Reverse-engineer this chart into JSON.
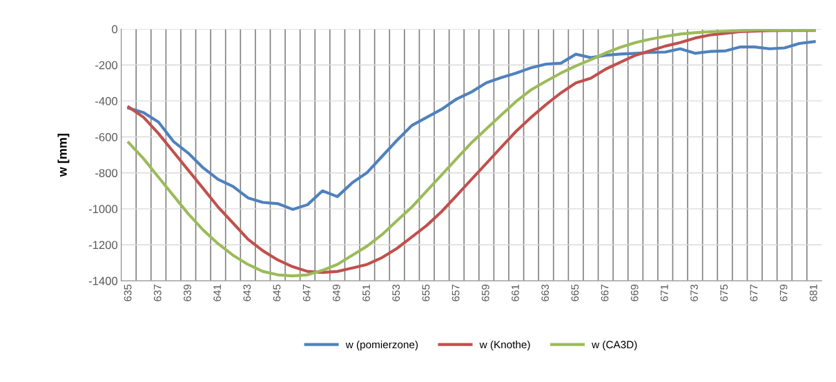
{
  "chart_data": {
    "type": "line",
    "ylabel": "w [mm]",
    "categories": [
      "635",
      null,
      "637",
      null,
      "639",
      null,
      "641",
      null,
      "643",
      null,
      "645",
      null,
      "647",
      null,
      "649",
      null,
      "651",
      null,
      "653",
      null,
      "655",
      null,
      "657",
      null,
      "659",
      null,
      "661",
      null,
      "663",
      null,
      "665",
      null,
      "667",
      null,
      "669",
      null,
      "671",
      null,
      "673",
      null,
      "675",
      null,
      "677",
      null,
      "679",
      null,
      "681"
    ],
    "series": [
      {
        "name": "w (pomierzone)",
        "color": "#4f81bd",
        "values": [
          -440,
          -465,
          -517,
          -625,
          -690,
          -772,
          -836,
          -875,
          -939,
          -964,
          -971,
          -1003,
          -977,
          -900,
          -932,
          -855,
          -798,
          -708,
          -619,
          -536,
          -491,
          -446,
          -389,
          -350,
          -299,
          -270,
          -245,
          -215,
          -195,
          -190,
          -140,
          -159,
          -146,
          -139,
          -135,
          -130,
          -128,
          -110,
          -135,
          -125,
          -122,
          -100,
          -100,
          -110,
          -105,
          -80,
          -70
        ]
      },
      {
        "name": "w (Knothe)",
        "color": "#c0504d",
        "values": [
          -434,
          -491,
          -581,
          -683,
          -785,
          -887,
          -990,
          -1079,
          -1169,
          -1233,
          -1284,
          -1322,
          -1348,
          -1354,
          -1348,
          -1329,
          -1309,
          -1271,
          -1220,
          -1156,
          -1092,
          -1015,
          -926,
          -836,
          -747,
          -657,
          -568,
          -491,
          -420,
          -355,
          -300,
          -274,
          -223,
          -184,
          -146,
          -120,
          -95,
          -75,
          -50,
          -33,
          -24,
          -15,
          -12,
          -9,
          -8,
          -8,
          -8
        ]
      },
      {
        "name": "w (CA3D)",
        "color": "#9bbb59",
        "values": [
          -632,
          -721,
          -824,
          -926,
          -1028,
          -1118,
          -1194,
          -1258,
          -1309,
          -1348,
          -1367,
          -1373,
          -1367,
          -1342,
          -1309,
          -1258,
          -1207,
          -1143,
          -1066,
          -990,
          -900,
          -811,
          -721,
          -632,
          -555,
          -478,
          -402,
          -338,
          -290,
          -245,
          -205,
          -171,
          -133,
          -101,
          -75,
          -56,
          -41,
          -28,
          -20,
          -15,
          -12,
          -9,
          -5,
          -5,
          -5,
          -5,
          -5
        ]
      }
    ],
    "ylim": [
      -1400,
      0
    ],
    "yticks": [
      -1400,
      -1200,
      -1000,
      -800,
      -600,
      -400,
      -200,
      0
    ],
    "grid": true,
    "legend": "bottom",
    "marker": "none",
    "line_style": "solid"
  }
}
